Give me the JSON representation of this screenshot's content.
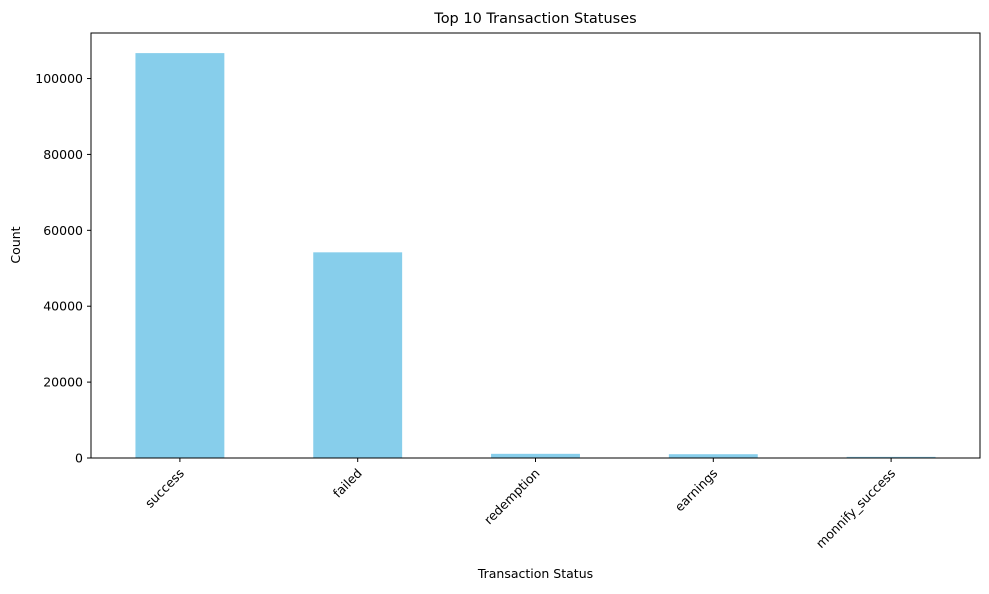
{
  "chart_data": {
    "type": "bar",
    "title": "Top 10 Transaction Statuses",
    "xlabel": "Transaction Status",
    "ylabel": "Count",
    "categories": [
      "success",
      "failed",
      "redemption",
      "earnings",
      "monnify_success"
    ],
    "values": [
      106700,
      54200,
      1100,
      1000,
      300
    ],
    "ylim": [
      0,
      112000
    ],
    "yticks": [
      0,
      20000,
      40000,
      60000,
      80000,
      100000
    ],
    "bar_color": "#87ceeb",
    "grid": false,
    "legend": null
  }
}
